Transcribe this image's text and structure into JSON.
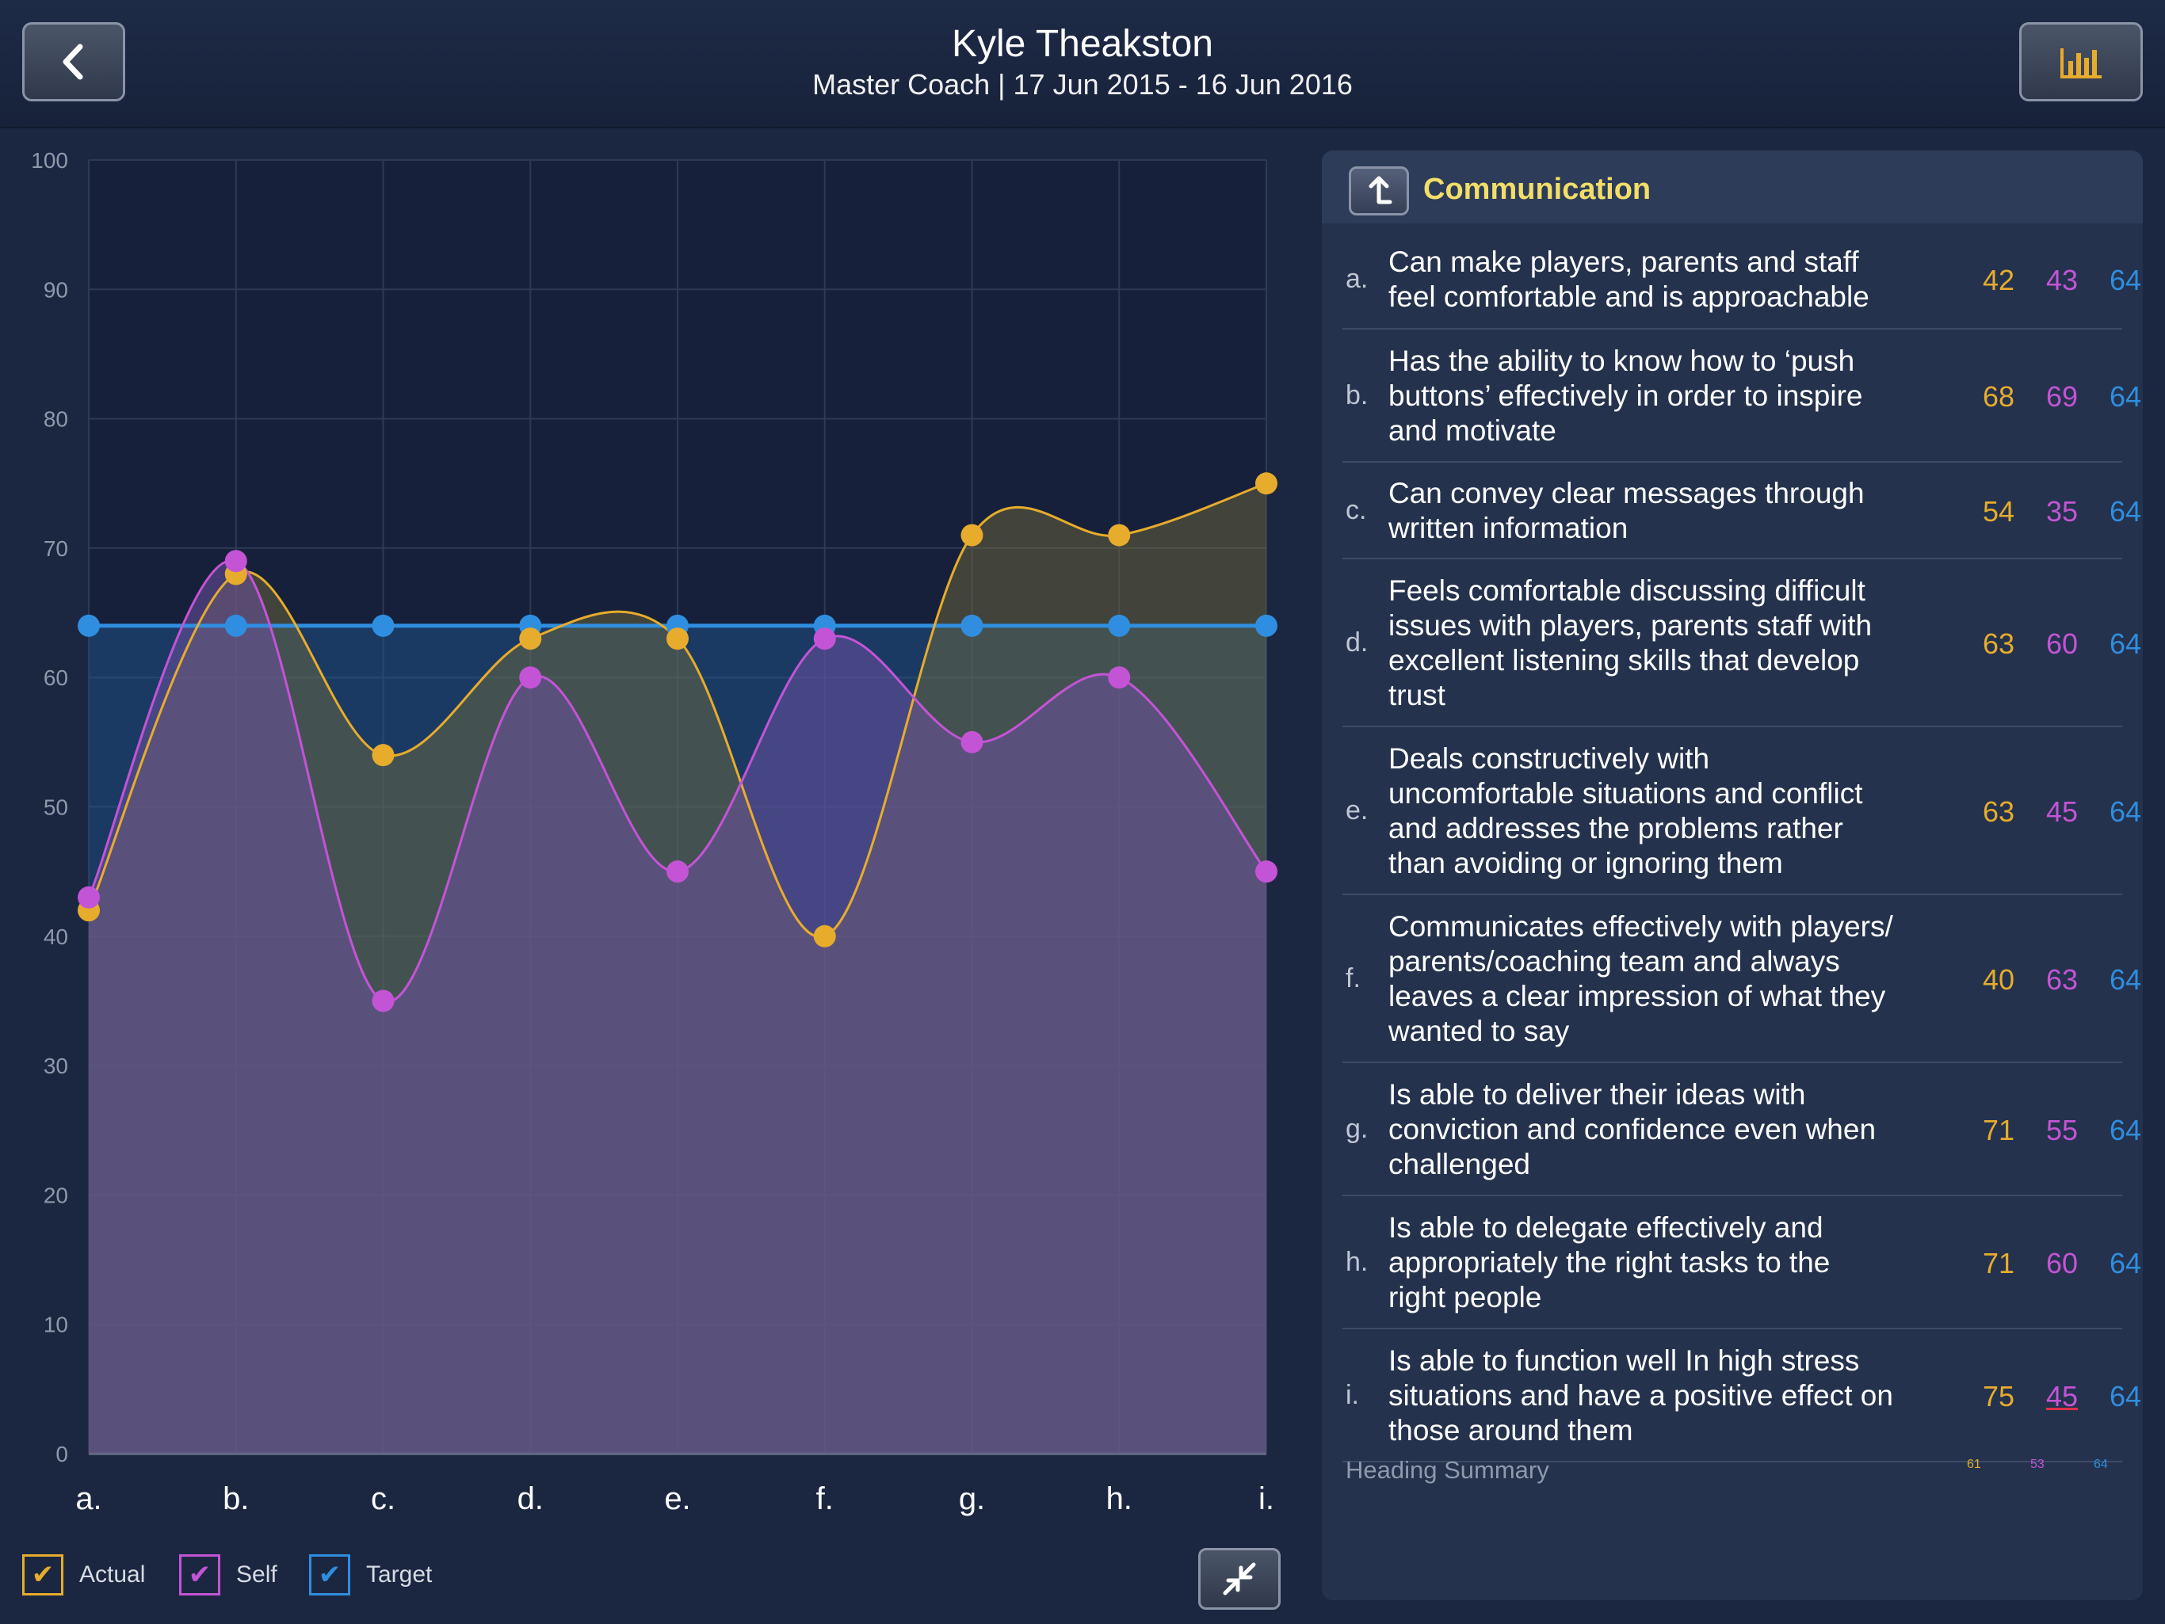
{
  "header": {
    "title": "Kyle Theakston",
    "subtitle": "Master Coach | 17 Jun 2015 - 16 Jun 2016"
  },
  "chart_data": {
    "type": "line",
    "categories": [
      "a.",
      "b.",
      "c.",
      "d.",
      "e.",
      "f.",
      "g.",
      "h.",
      "i."
    ],
    "series": [
      {
        "name": "Actual",
        "values": [
          42,
          68,
          54,
          63,
          63,
          40,
          71,
          71,
          75
        ],
        "color": "#e7ac2c"
      },
      {
        "name": "Self",
        "values": [
          43,
          69,
          35,
          60,
          45,
          63,
          55,
          60,
          45
        ],
        "color": "#c454d6"
      },
      {
        "name": "Target",
        "values": [
          64,
          64,
          64,
          64,
          64,
          64,
          64,
          64,
          64
        ],
        "color": "#2f8ee0"
      }
    ],
    "ylim": [
      0,
      100
    ],
    "yticks": [
      "0",
      "10",
      "20",
      "30",
      "40",
      "50",
      "60",
      "70",
      "80",
      "90",
      "100"
    ],
    "grid": true,
    "legend_position": "bottom-left"
  },
  "legend": {
    "actual_label": "Actual",
    "self_label": "Self",
    "target_label": "Target"
  },
  "panel": {
    "title": "Communication",
    "items": [
      {
        "letter": "a.",
        "lines": [
          "Can make players, parents and staff",
          "feel comfortable and is approachable"
        ],
        "actual": "42",
        "self": "43",
        "target": "64"
      },
      {
        "letter": "b.",
        "lines": [
          "Has the ability to know how to ‘push",
          "buttons’ effectively in order to inspire",
          "and motivate"
        ],
        "actual": "68",
        "self": "69",
        "target": "64"
      },
      {
        "letter": "c.",
        "lines": [
          "Can convey clear messages through",
          "written information"
        ],
        "actual": "54",
        "self": "35",
        "target": "64"
      },
      {
        "letter": "d.",
        "lines": [
          "Feels comfortable discussing difficult",
          "issues with players, parents staff with",
          "excellent listening skills that develop",
          "trust"
        ],
        "actual": "63",
        "self": "60",
        "target": "64"
      },
      {
        "letter": "e.",
        "lines": [
          "Deals constructively with",
          "uncomfortable situations and conflict",
          "and addresses the problems rather",
          "than avoiding or ignoring them"
        ],
        "actual": "63",
        "self": "45",
        "target": "64"
      },
      {
        "letter": "f.",
        "lines": [
          "Communicates effectively with players/",
          "parents/coaching team and always",
          "leaves a clear impression of what they",
          "wanted to say"
        ],
        "actual": "40",
        "self": "63",
        "target": "64"
      },
      {
        "letter": "g.",
        "lines": [
          "Is able to deliver their ideas with",
          "conviction and confidence even when",
          "challenged"
        ],
        "actual": "71",
        "self": "55",
        "target": "64"
      },
      {
        "letter": "h.",
        "lines": [
          "Is able to delegate effectively and",
          "appropriately the right tasks to the",
          "right people"
        ],
        "actual": "71",
        "self": "60",
        "target": "64"
      },
      {
        "letter": "i.",
        "lines": [
          "Is able to function well In high stress",
          "situations and have a positive effect on",
          "those around them"
        ],
        "actual": "75",
        "self": "45",
        "target": "64"
      }
    ],
    "summary": {
      "label": "Heading Summary",
      "actual": "61",
      "self": "53",
      "target": "64"
    }
  }
}
